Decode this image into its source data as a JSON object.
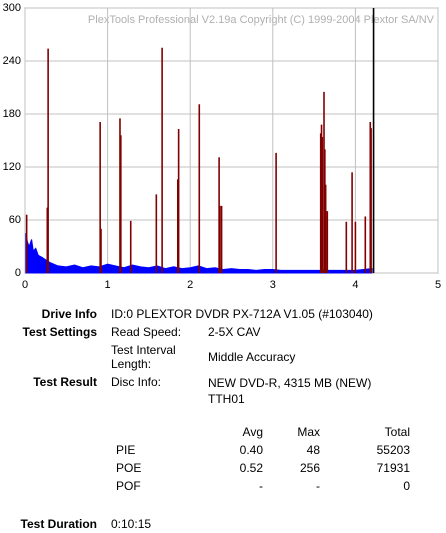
{
  "chart_data": {
    "type": "bar",
    "title": "PlexTools Professional V2.19a Copyright (C) 1999-2004 Plextor SA/NV",
    "xlim": [
      0,
      5
    ],
    "xticks": [
      0,
      1,
      2,
      3,
      4,
      5
    ],
    "ylim": [
      0,
      300
    ],
    "yticks": [
      0,
      60,
      120,
      180,
      240,
      300
    ],
    "grid": true,
    "series": [
      {
        "style": "area",
        "color": "#0000ff",
        "x": [
          0.01,
          0.03,
          0.05,
          0.08,
          0.1,
          0.13,
          0.16,
          0.2,
          0.25,
          0.3,
          0.4,
          0.5,
          0.6,
          0.7,
          0.8,
          0.9,
          1.0,
          1.1,
          1.2,
          1.3,
          1.4,
          1.5,
          1.6,
          1.7,
          1.8,
          1.9,
          2.0,
          2.1,
          2.2,
          2.3,
          2.4,
          2.5,
          2.6,
          2.7,
          2.8,
          2.9,
          3.0,
          3.1,
          3.2,
          3.3,
          3.4,
          3.5,
          3.6,
          3.7,
          3.8,
          3.9,
          4.0,
          4.1,
          4.2
        ],
        "values": [
          45,
          35,
          30,
          38,
          25,
          28,
          20,
          18,
          15,
          12,
          8,
          7,
          9,
          6,
          8,
          7,
          10,
          8,
          6,
          9,
          7,
          6,
          8,
          5,
          7,
          5,
          6,
          8,
          5,
          6,
          4,
          5,
          4,
          4,
          3,
          4,
          4,
          3,
          3,
          3,
          3,
          3,
          3,
          3,
          3,
          3,
          3,
          4,
          5
        ]
      },
      {
        "style": "spike",
        "color": "#800000",
        "x": [
          0.02,
          0.27,
          0.28,
          0.91,
          0.92,
          1.15,
          1.16,
          1.28,
          1.59,
          1.66,
          1.85,
          1.86,
          2.11,
          2.35,
          2.36,
          2.38,
          3.04,
          3.58,
          3.59,
          3.6,
          3.62,
          3.63,
          3.64,
          3.66,
          3.89,
          3.96,
          4.0,
          4.12,
          4.18,
          4.19
        ],
        "values": [
          66,
          74,
          254,
          171,
          50,
          175,
          156,
          59,
          89,
          255,
          106,
          163,
          191,
          131,
          76,
          76,
          136,
          158,
          168,
          154,
          205,
          140,
          100,
          70,
          58,
          114,
          58,
          64,
          171,
          164
        ]
      },
      {
        "style": "spike",
        "color": "#000000",
        "x": [
          4.22
        ],
        "values": [
          300
        ]
      }
    ]
  },
  "info": {
    "drive_info": {
      "label": "Drive Info",
      "value": "ID:0 PLEXTOR DVDR PX-712A V1.05 (#103040)"
    },
    "test_settings": {
      "label": "Test Settings",
      "rows": [
        [
          "Read Speed:",
          "2-5X CAV"
        ],
        [
          "Test Interval Length:",
          "Middle Accuracy"
        ]
      ]
    },
    "test_result": {
      "label": "Test Result",
      "rows": [
        [
          "Disc Info:",
          "NEW DVD-R, 4315 MB (NEW) TTH01"
        ]
      ]
    },
    "stats": {
      "headers": [
        "Avg",
        "Max",
        "Total"
      ],
      "rows": [
        [
          "PIE",
          "0.40",
          "48",
          "55203"
        ],
        [
          "POE",
          "0.52",
          "256",
          "71931"
        ],
        [
          "POF",
          "-",
          "-",
          "0"
        ]
      ]
    },
    "test_duration": {
      "label": "Test Duration",
      "value": "0:10:15"
    }
  }
}
